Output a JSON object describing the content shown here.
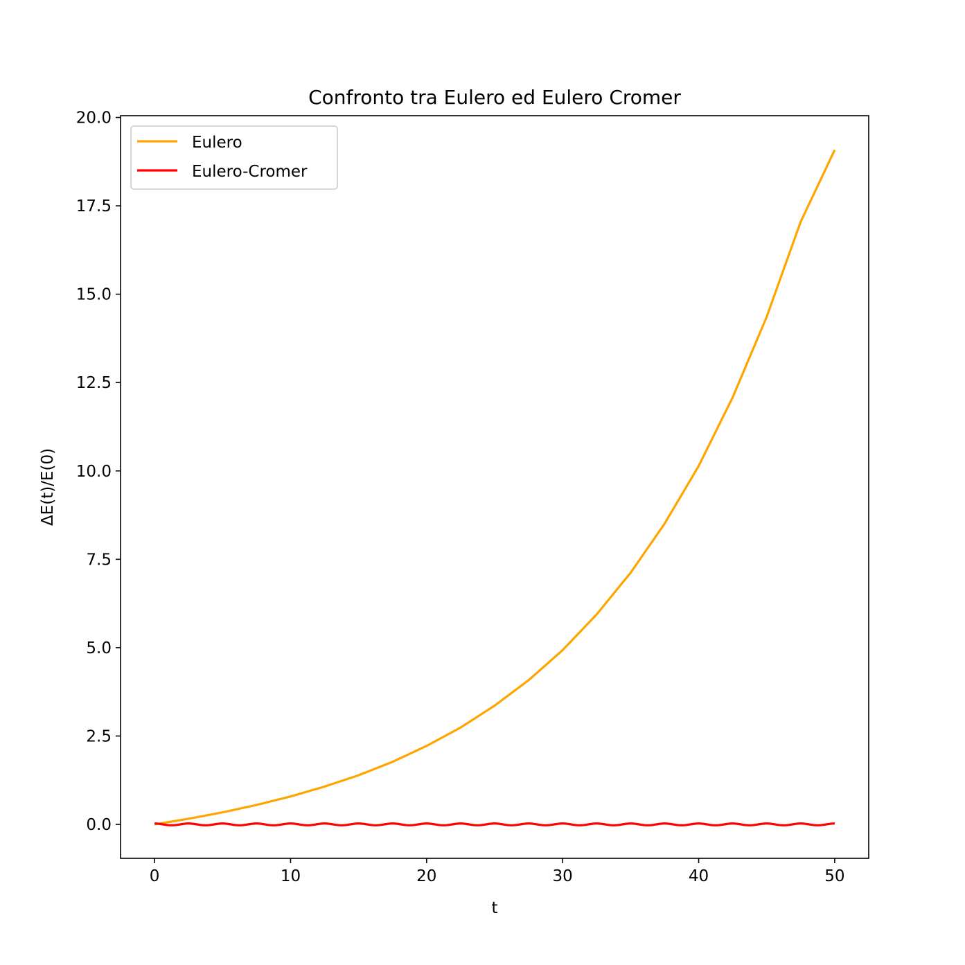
{
  "chart_data": {
    "type": "line",
    "title": "Confronto tra Eulero ed Eulero Cromer",
    "xlabel": "t",
    "ylabel": "ΔE(t)/E(0)",
    "xlim": [
      -2.5,
      52.5
    ],
    "ylim": [
      -0.96,
      20.05
    ],
    "xticks": [
      0,
      10,
      20,
      30,
      40,
      50
    ],
    "xtick_labels": [
      "0",
      "10",
      "20",
      "30",
      "40",
      "50"
    ],
    "yticks": [
      0.0,
      2.5,
      5.0,
      7.5,
      10.0,
      12.5,
      15.0,
      17.5,
      20.0
    ],
    "ytick_labels": [
      "0.0",
      "2.5",
      "5.0",
      "7.5",
      "10.0",
      "12.5",
      "15.0",
      "17.5",
      "20.0"
    ],
    "grid": false,
    "legend_position": "upper-left",
    "series": [
      {
        "name": "Eulero",
        "color": "#ffa500",
        "x": [
          0,
          2.5,
          5,
          7.5,
          10,
          12.5,
          15,
          17.5,
          20,
          22.5,
          25,
          27.5,
          30,
          32.5,
          35,
          37.5,
          40,
          42.5,
          45,
          47.5,
          50
        ],
        "y": [
          0,
          0.16,
          0.34,
          0.55,
          0.79,
          1.07,
          1.39,
          1.77,
          2.22,
          2.74,
          3.36,
          4.08,
          4.93,
          5.94,
          7.12,
          8.51,
          10.14,
          12.08,
          14.36,
          17.05,
          19.08
        ]
      },
      {
        "name": "Eulero-Cromer",
        "color": "#ff0000",
        "x_range": [
          0,
          50
        ],
        "wave_amplitude": 0.05,
        "wave_period": 2.5
      }
    ]
  }
}
